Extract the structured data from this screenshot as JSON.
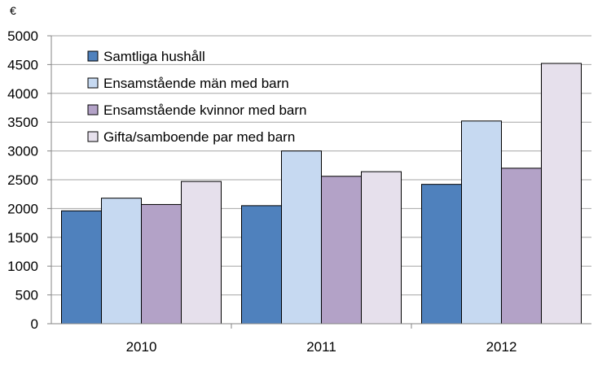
{
  "chart_data": {
    "type": "bar",
    "unit_label": "€",
    "categories": [
      "2010",
      "2011",
      "2012"
    ],
    "series": [
      {
        "name": "Samtliga hushåll",
        "color": "#4f81bd",
        "values": [
          1960,
          2050,
          2420
        ]
      },
      {
        "name": "Ensamstående män med barn",
        "color": "#c6d9f1",
        "values": [
          2180,
          3000,
          3520
        ]
      },
      {
        "name": "Ensamstående kvinnor med barn",
        "color": "#b3a2c7",
        "values": [
          2070,
          2560,
          2700
        ]
      },
      {
        "name": "Gifta/samboende par med barn",
        "color": "#e6e0ec",
        "values": [
          2470,
          2640,
          4520
        ]
      }
    ],
    "ylim": [
      0,
      5000
    ],
    "yticks": [
      0,
      500,
      1000,
      1500,
      2000,
      2500,
      3000,
      3500,
      4000,
      4500,
      5000
    ],
    "grid": true,
    "legend_position": "top-left",
    "title": "",
    "xlabel": "",
    "ylabel": ""
  }
}
